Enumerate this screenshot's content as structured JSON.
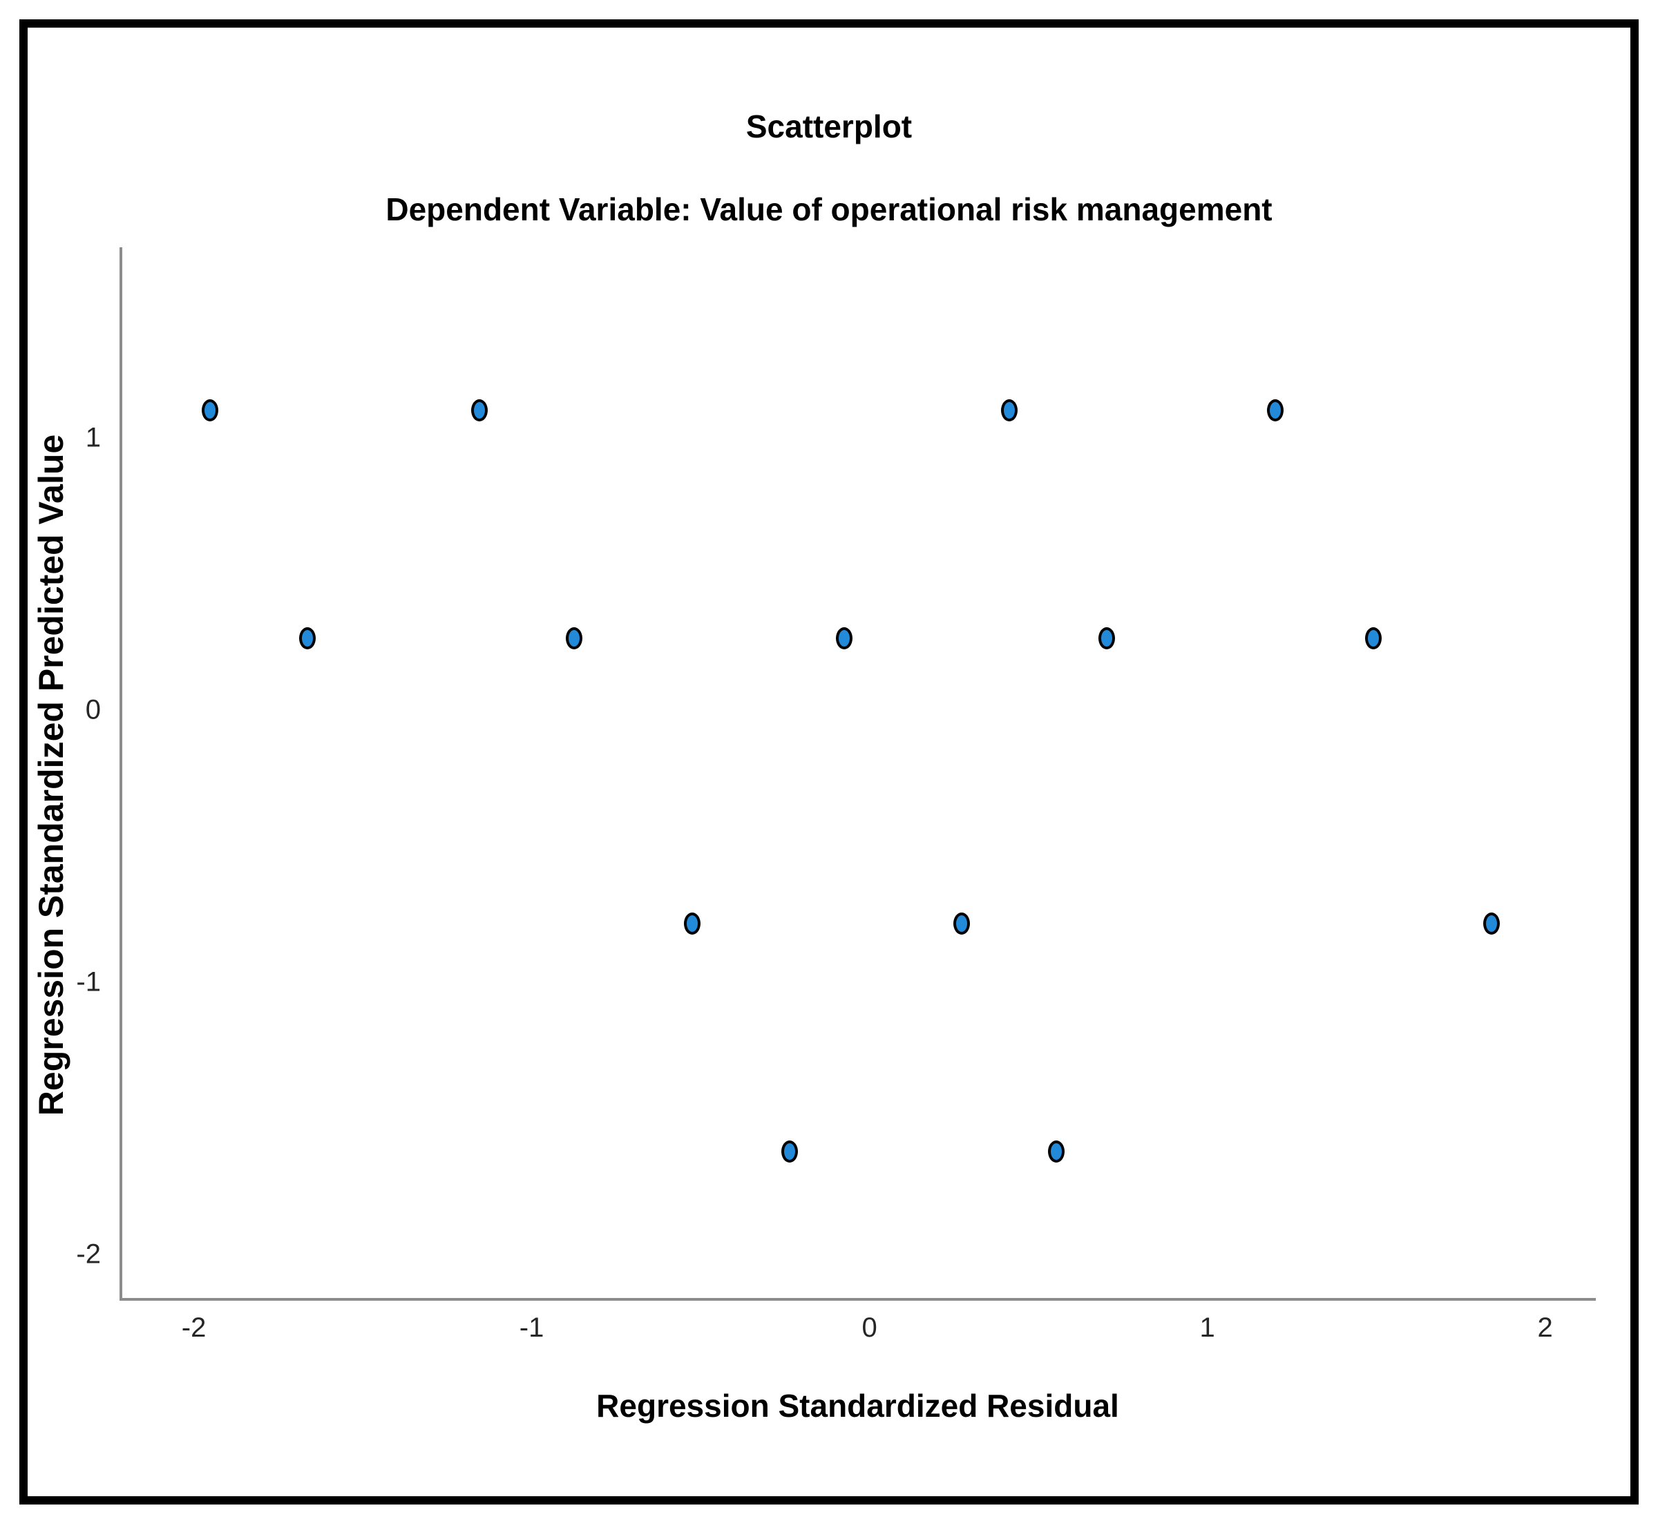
{
  "figure": {
    "title": "Scatterplot",
    "subtitle": "Dependent Variable: Value of operational risk management"
  },
  "chart_data": {
    "type": "scatter",
    "title": "Scatterplot",
    "subtitle": "Dependent Variable: Value of operational risk management",
    "xlabel": "Regression Standardized Residual",
    "ylabel": "Regression Standardized Predicted Value",
    "xlim": [
      -2.22,
      2.15
    ],
    "ylim": [
      -2.17,
      1.7
    ],
    "x_ticks": [
      -2,
      -1,
      0,
      1,
      2
    ],
    "y_ticks": [
      1,
      0,
      -1,
      -2
    ],
    "grid": false,
    "legend": "none",
    "marker": {
      "shape": "ellipse",
      "fill": "#2389d9",
      "stroke": "#000000"
    },
    "points": [
      {
        "x": -1.96,
        "y": 1.1
      },
      {
        "x": -1.16,
        "y": 1.1
      },
      {
        "x": 0.41,
        "y": 1.1
      },
      {
        "x": 1.2,
        "y": 1.1
      },
      {
        "x": -1.67,
        "y": 0.26
      },
      {
        "x": -0.88,
        "y": 0.26
      },
      {
        "x": -0.08,
        "y": 0.26
      },
      {
        "x": 0.7,
        "y": 0.26
      },
      {
        "x": 1.49,
        "y": 0.26
      },
      {
        "x": -0.53,
        "y": -0.79
      },
      {
        "x": 0.27,
        "y": -0.79
      },
      {
        "x": 1.84,
        "y": -0.79
      },
      {
        "x": -0.24,
        "y": -1.63
      },
      {
        "x": 0.55,
        "y": -1.63
      }
    ]
  },
  "colors": {
    "background": "#ffffff",
    "frame_border": "#000000",
    "axis_line": "#8c8c8c",
    "tick_text": "#262626",
    "marker_fill": "#2389d9",
    "marker_stroke": "#000000"
  }
}
